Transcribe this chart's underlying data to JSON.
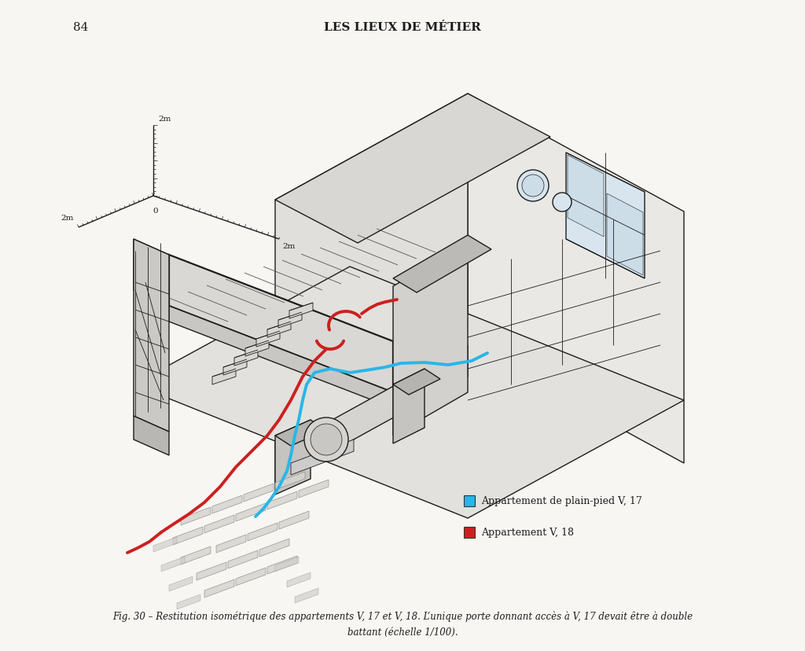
{
  "page_number": "84",
  "header_title": "LES LIEUX DE MÉTIER",
  "page_bg": "#f7f6f3",
  "draw_bg": "#f7f6f3",
  "legend_items": [
    {
      "label": "Appartement de plain-pied V, 17",
      "color": "#29b6e8"
    },
    {
      "label": "Appartement V, 18",
      "color": "#cc2020"
    }
  ],
  "caption_line1": "Fig. 30 – Restitution isométrique des appartements V, 17 et V, 18. L’unique porte donnant accès à V, 17 devait être à double",
  "caption_line2": "battant (échelle 1/100).",
  "header_fontsize": 11,
  "caption_fontsize": 8.5,
  "legend_fontsize": 9,
  "scale_zero": "0",
  "scale_2m": "2m"
}
